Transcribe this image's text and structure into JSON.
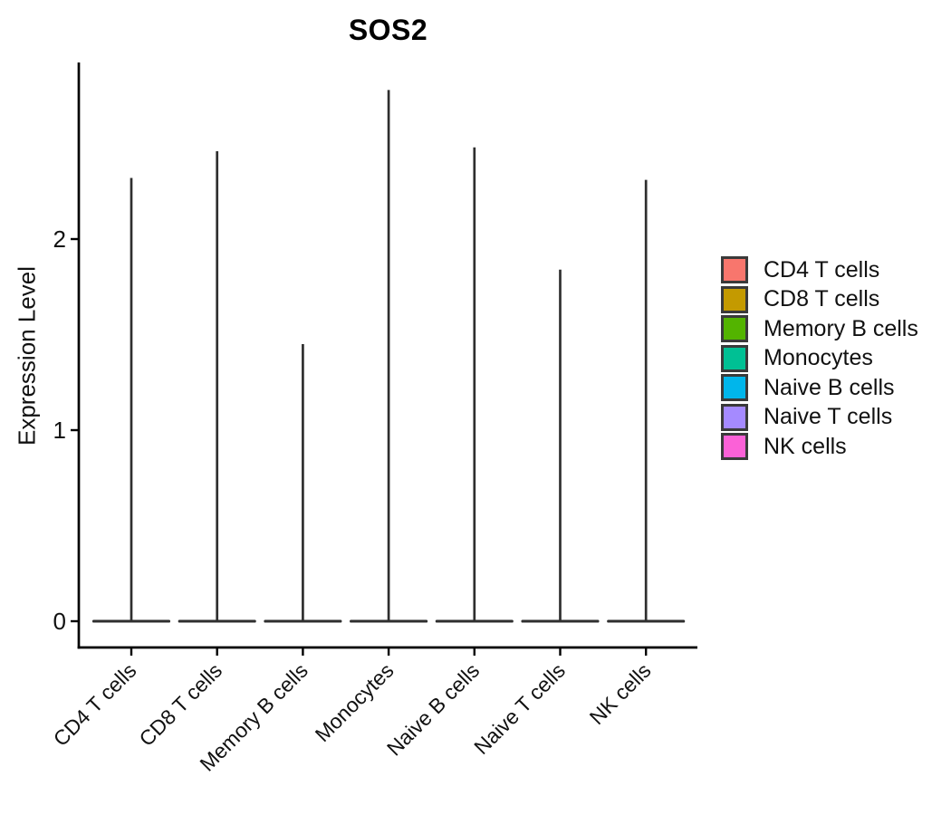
{
  "figure": {
    "background": "#ffffff"
  },
  "chart_data": {
    "type": "violin",
    "title": "SOS2",
    "ylabel": "Expression Level",
    "xlabel": "",
    "yticks": [
      0,
      1,
      2
    ],
    "ylim": [
      0,
      2.78
    ],
    "grid": false,
    "legend_position": "right",
    "axis_color": "#000000",
    "violin_outline_color": "#2f2f2f",
    "categories": [
      "CD4 T cells",
      "CD8 T cells",
      "Memory B cells",
      "Monocytes",
      "Naive B cells",
      "Naive T cells",
      "NK cells"
    ],
    "violins": [
      {
        "label": "CD4 T cells",
        "color": "#F8766D",
        "max_expression": 2.32,
        "bulk_at_zero": true
      },
      {
        "label": "CD8 T cells",
        "color": "#C49A00",
        "max_expression": 2.46,
        "bulk_at_zero": true
      },
      {
        "label": "Memory B cells",
        "color": "#53B400",
        "max_expression": 1.45,
        "bulk_at_zero": true
      },
      {
        "label": "Monocytes",
        "color": "#00C094",
        "max_expression": 2.78,
        "bulk_at_zero": true
      },
      {
        "label": "Naive B cells",
        "color": "#00B6EB",
        "max_expression": 2.48,
        "bulk_at_zero": true
      },
      {
        "label": "Naive T cells",
        "color": "#A58AFF",
        "max_expression": 1.84,
        "bulk_at_zero": true
      },
      {
        "label": "NK cells",
        "color": "#FB61D7",
        "max_expression": 2.31,
        "bulk_at_zero": true
      }
    ]
  },
  "legend": {
    "items": [
      {
        "label": "CD4 T cells",
        "color": "#F8766D"
      },
      {
        "label": "CD8 T cells",
        "color": "#C49A00"
      },
      {
        "label": "Memory B cells",
        "color": "#53B400"
      },
      {
        "label": "Monocytes",
        "color": "#00C094"
      },
      {
        "label": "Naive B cells",
        "color": "#00B6EB"
      },
      {
        "label": "Naive T cells",
        "color": "#A58AFF"
      },
      {
        "label": "NK cells",
        "color": "#FB61D7"
      }
    ]
  }
}
